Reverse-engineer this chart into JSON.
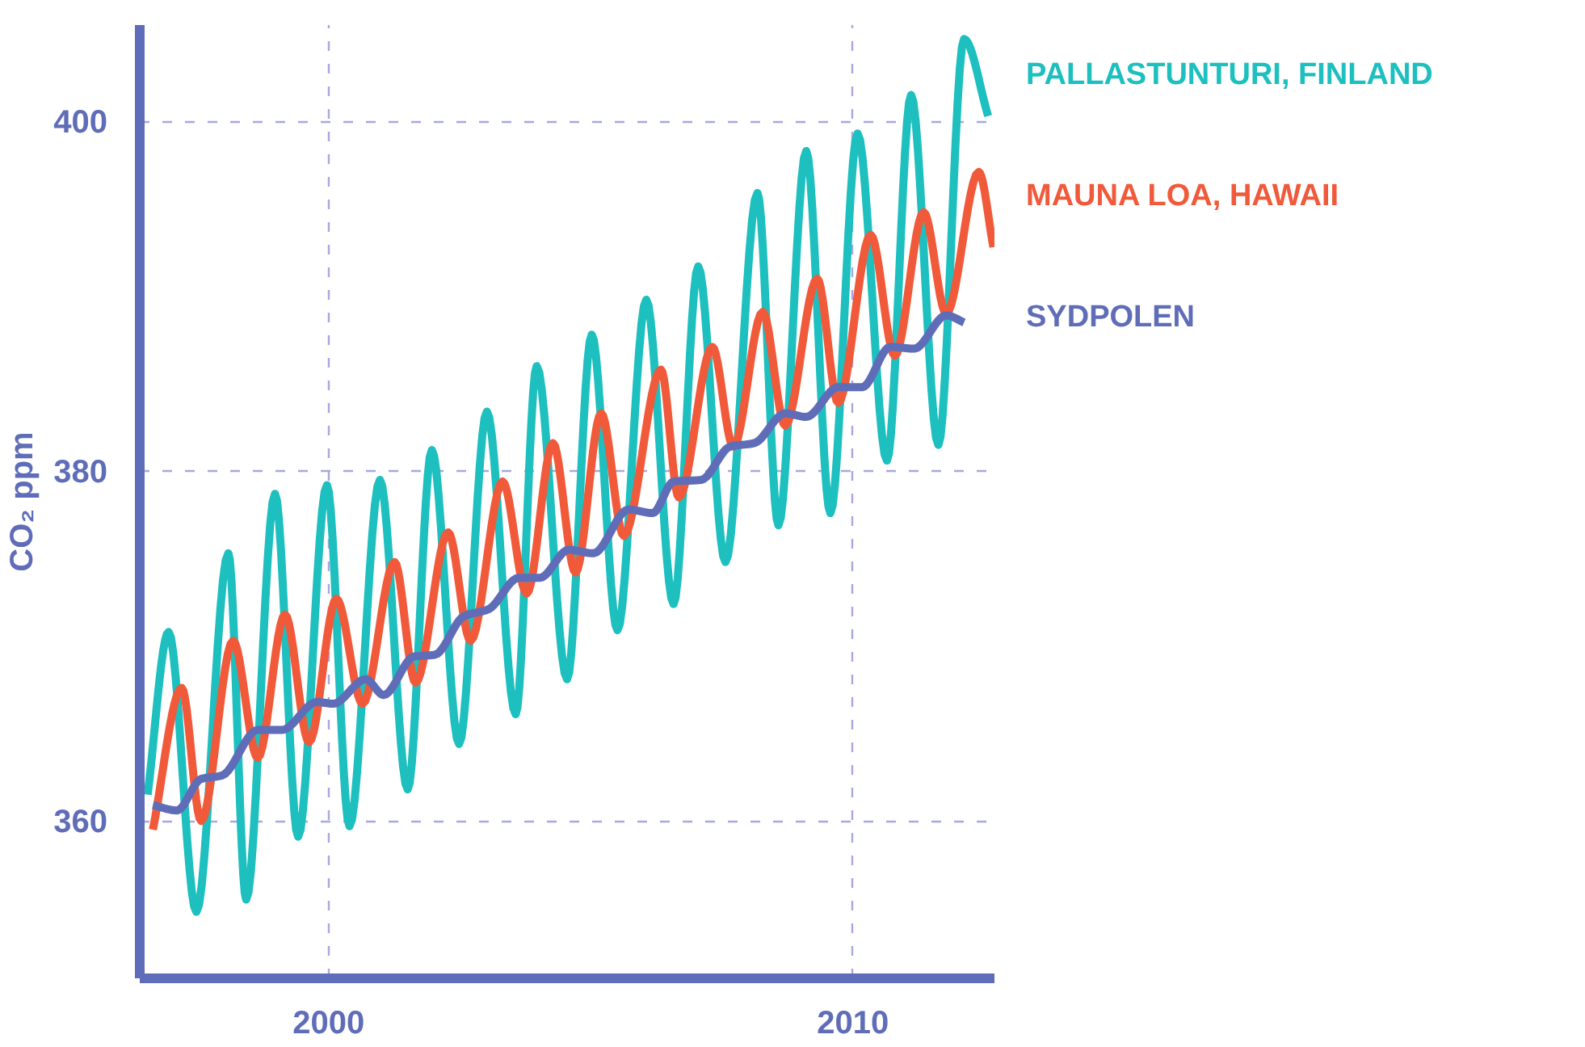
{
  "chart_data": {
    "type": "line",
    "ylabel": "CO₂ ppm",
    "xlim": [
      1996.4,
      2012.7
    ],
    "ylim": [
      351,
      405.5
    ],
    "xticks": [
      2000,
      2010
    ],
    "yticks": [
      360,
      380,
      400
    ],
    "grid": true,
    "line_style": "solid",
    "marker": "none",
    "series": [
      {
        "name": "PALLASTUNTURI, FINLAND",
        "color": "#1dbfbf",
        "x": [
          1996.55,
          1996.95,
          1997.48,
          1998.09,
          1998.43,
          1998.98,
          1999.42,
          1999.97,
          2000.4,
          2000.98,
          2001.51,
          2001.97,
          2002.49,
          2003.02,
          2003.57,
          2003.97,
          2004.55,
          2005.02,
          2005.51,
          2006.06,
          2006.58,
          2007.05,
          2007.57,
          2008.18,
          2008.58,
          2009.11,
          2009.57,
          2010.09,
          2010.65,
          2011.11,
          2011.63,
          2012.12,
          2012.58
        ],
        "values": [
          361.5,
          370.8,
          354.8,
          375.3,
          355.5,
          378.7,
          359.1,
          379.2,
          359.7,
          379.5,
          361.8,
          381.2,
          364.4,
          383.4,
          366.1,
          386.0,
          368.1,
          387.8,
          370.9,
          389.8,
          372.4,
          391.7,
          374.8,
          395.9,
          376.9,
          398.3,
          377.6,
          399.3,
          380.6,
          401.5,
          381.5,
          404.7,
          400.3
        ]
      },
      {
        "name": "MAUNA LOA, HAWAII",
        "color": "#f05a3a",
        "x": [
          1996.65,
          1997.2,
          1997.57,
          1998.18,
          1998.65,
          1999.17,
          1999.63,
          2000.15,
          2000.65,
          2001.26,
          2001.66,
          2002.28,
          2002.71,
          2003.32,
          2003.78,
          2004.28,
          2004.71,
          2005.2,
          2005.63,
          2006.34,
          2006.68,
          2007.32,
          2007.72,
          2008.28,
          2008.71,
          2009.32,
          2009.72,
          2010.34,
          2010.8,
          2011.35,
          2011.78,
          2012.4,
          2012.68
        ],
        "values": [
          359.5,
          367.6,
          360.0,
          370.3,
          363.6,
          371.8,
          364.5,
          372.7,
          366.7,
          374.8,
          367.9,
          376.5,
          370.3,
          379.4,
          373.0,
          381.6,
          374.2,
          383.3,
          376.3,
          385.8,
          378.5,
          387.1,
          381.4,
          389.1,
          382.6,
          391.0,
          383.9,
          393.5,
          386.6,
          394.8,
          389.0,
          397.1,
          392.8
        ]
      },
      {
        "name": "SYDPOLEN",
        "color": "#5f6db8",
        "x": [
          1996.65,
          1997.11,
          1997.57,
          1997.97,
          1998.65,
          1999.11,
          1999.78,
          2000.09,
          2000.71,
          2001.05,
          2001.63,
          2002.03,
          2002.58,
          2003.05,
          2003.63,
          2004.03,
          2004.58,
          2005.05,
          2005.72,
          2006.18,
          2006.58,
          2007.11,
          2007.66,
          2008.12,
          2008.71,
          2009.11,
          2009.72,
          2010.18,
          2010.71,
          2011.17,
          2011.78,
          2012.12
        ],
        "values": [
          360.9,
          360.6,
          362.4,
          362.6,
          365.2,
          365.2,
          366.8,
          366.7,
          368.1,
          367.2,
          369.4,
          369.5,
          371.7,
          372.1,
          373.9,
          373.9,
          375.5,
          375.3,
          377.8,
          377.6,
          379.4,
          379.5,
          381.4,
          381.6,
          383.3,
          383.1,
          384.8,
          384.8,
          387.1,
          387.0,
          388.9,
          388.5
        ]
      }
    ]
  }
}
